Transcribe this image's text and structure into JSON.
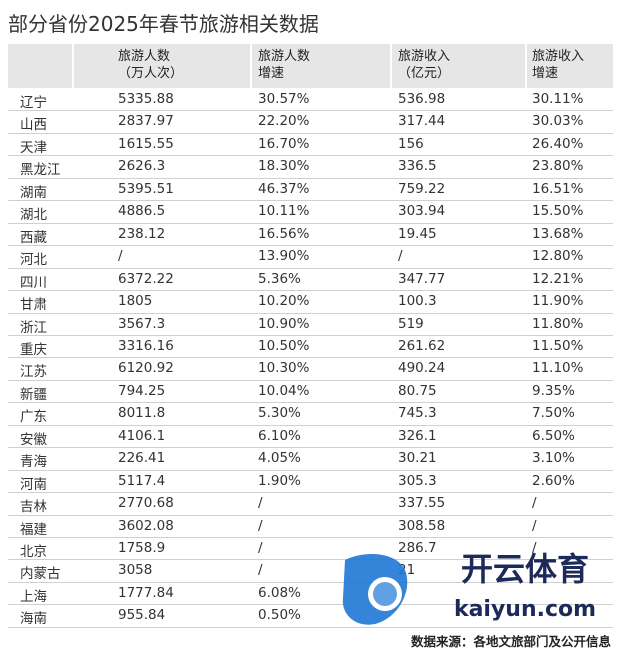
{
  "title": "部分省份2025年春节旅游相关数据",
  "table": {
    "header": [
      [
        "旅游人数",
        "（万人次）"
      ],
      [
        "旅游人数",
        "增速"
      ],
      [
        "旅游收入",
        "（亿元）"
      ],
      [
        "旅游收入",
        "增速"
      ]
    ],
    "rows": [
      [
        "辽宁",
        "5335.88",
        "30.57%",
        "536.98",
        "30.11%"
      ],
      [
        "山西",
        "2837.97",
        "22.20%",
        "317.44",
        "30.03%"
      ],
      [
        "天津",
        "1615.55",
        "16.70%",
        "156",
        "26.40%"
      ],
      [
        "黑龙江",
        "2626.3",
        "18.30%",
        "336.5",
        "23.80%"
      ],
      [
        "湖南",
        "5395.51",
        "46.37%",
        "759.22",
        "16.51%"
      ],
      [
        "湖北",
        "4886.5",
        "10.11%",
        "303.94",
        "15.50%"
      ],
      [
        "西藏",
        "238.12",
        "16.56%",
        "19.45",
        "13.68%"
      ],
      [
        "河北",
        "/",
        "13.90%",
        "/",
        "12.80%"
      ],
      [
        "四川",
        "6372.22",
        "5.36%",
        "347.77",
        "12.21%"
      ],
      [
        "甘肃",
        "1805",
        "10.20%",
        "100.3",
        "11.90%"
      ],
      [
        "浙江",
        "3567.3",
        "10.90%",
        "519",
        "11.80%"
      ],
      [
        "重庆",
        "3316.16",
        "10.50%",
        "261.62",
        "11.50%"
      ],
      [
        "江苏",
        "6120.92",
        "10.30%",
        "490.24",
        "11.10%"
      ],
      [
        "新疆",
        "794.25",
        "10.04%",
        "80.75",
        "9.35%"
      ],
      [
        "广东",
        "8011.8",
        "5.30%",
        "745.3",
        "7.50%"
      ],
      [
        "安徽",
        "4106.1",
        "6.10%",
        "326.1",
        "6.50%"
      ],
      [
        "青海",
        "226.41",
        "4.05%",
        "30.21",
        "3.10%"
      ],
      [
        "河南",
        "5117.4",
        "1.90%",
        "305.3",
        "2.60%"
      ],
      [
        "吉林",
        "2770.68",
        "/",
        "337.55",
        "/"
      ],
      [
        "福建",
        "3602.08",
        "/",
        "308.58",
        "/"
      ],
      [
        "北京",
        "1758.9",
        "/",
        "286.7",
        "/"
      ],
      [
        "内蒙古",
        "3058",
        "/",
        "21"
      ],
      [
        "上海",
        "1777.84",
        "6.08%"
      ],
      [
        "海南",
        "955.84",
        "0.50%"
      ]
    ]
  },
  "source": "数据来源：各地文旅部门及公开信息",
  "watermark": {
    "name": "开云体育",
    "url": "kaiyun.com"
  }
}
